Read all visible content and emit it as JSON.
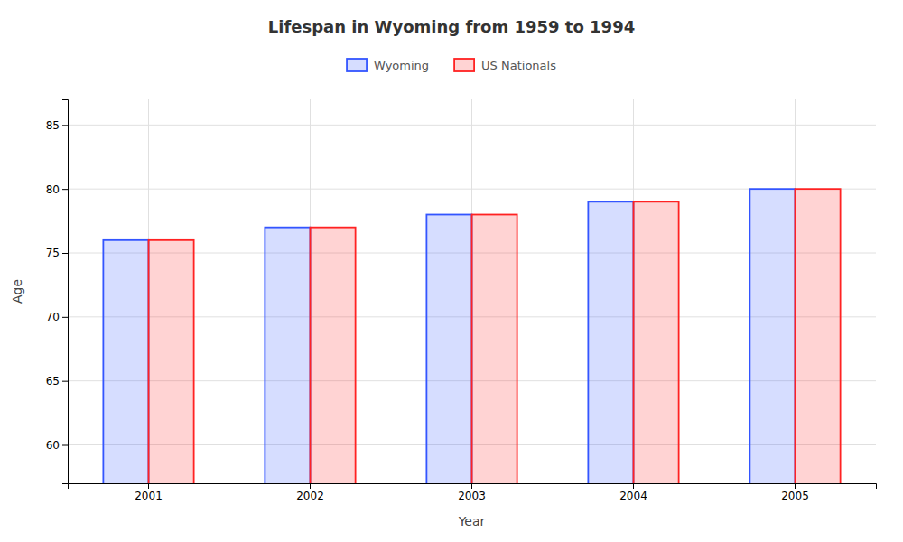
{
  "chart_data": {
    "type": "bar",
    "title": "Lifespan in Wyoming from 1959 to 1994",
    "xlabel": "Year",
    "ylabel": "Age",
    "categories": [
      "2001",
      "2002",
      "2003",
      "2004",
      "2005"
    ],
    "series": [
      {
        "name": "Wyoming",
        "color": "#3355ff",
        "values": [
          76,
          77,
          78,
          79,
          80
        ]
      },
      {
        "name": "US Nationals",
        "color": "#ff2222",
        "values": [
          76,
          77,
          78,
          79,
          80
        ]
      }
    ],
    "ylim": [
      57,
      87
    ],
    "yticks": [
      60,
      65,
      70,
      75,
      80,
      85
    ],
    "grid": true,
    "legend": "top"
  }
}
